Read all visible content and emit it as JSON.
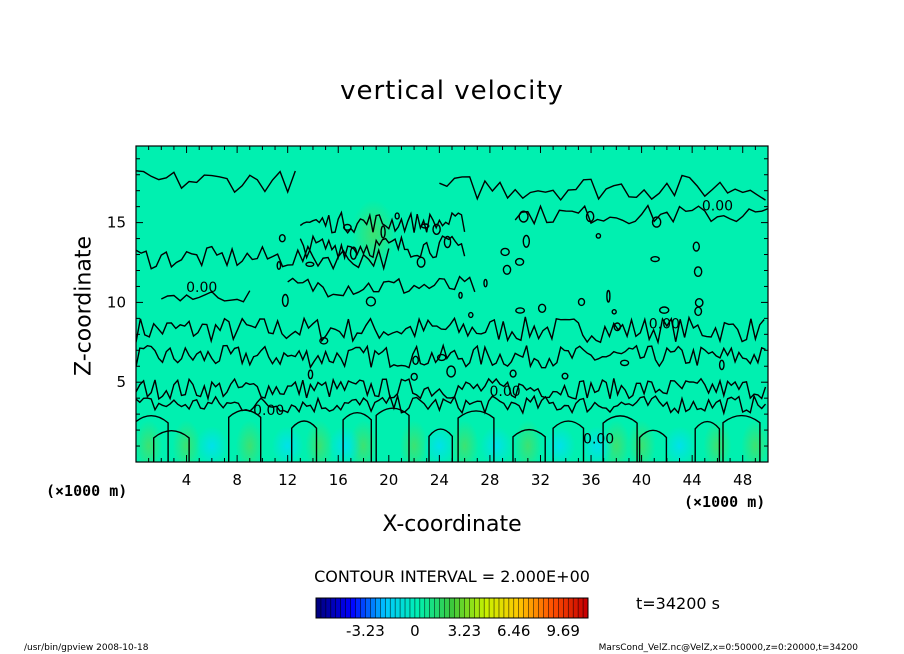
{
  "chart_data": {
    "type": "heatmap",
    "title": "vertical velocity",
    "xlabel": "X-coordinate",
    "ylabel": "Z-coordinate",
    "x_unit_left": "(×1000 m)",
    "x_unit_right": "(×1000 m)",
    "xlim": [
      0,
      50
    ],
    "ylim": [
      0,
      19.8
    ],
    "xticks": [
      4,
      8,
      12,
      16,
      20,
      24,
      28,
      32,
      36,
      40,
      44,
      48
    ],
    "yticks": [
      5,
      10,
      15
    ],
    "contour_labels": [
      {
        "text": "0.00",
        "x": 5.2,
        "y": 10.9
      },
      {
        "text": "0.00",
        "x": 10.5,
        "y": 3.2
      },
      {
        "text": "0.00",
        "x": 36.6,
        "y": 1.4
      },
      {
        "text": "0.00",
        "x": 41.8,
        "y": 8.6
      },
      {
        "text": "0.00",
        "x": 46.0,
        "y": 16.0
      },
      {
        "text": "0.00",
        "x": 29.2,
        "y": 4.4
      }
    ],
    "contour_interval_text": "CONTOUR INTERVAL = 2.000E+00",
    "colorbar": {
      "ticks": [
        "-3.23",
        "0",
        "3.23",
        "6.46",
        "9.69"
      ],
      "tick_values": [
        -3.23,
        0,
        3.23,
        6.46,
        9.69
      ],
      "min": -6.46,
      "max": 11.31
    },
    "time_label": "t=34200 s",
    "colors": {
      "background_field": "#00f0b0",
      "contour_line": "#000000"
    }
  },
  "footer": {
    "left": "/usr/bin/gpview 2008-10-18",
    "right": "MarsCond_VelZ.nc@VelZ,x=0:50000,z=0:20000,t=34200"
  }
}
